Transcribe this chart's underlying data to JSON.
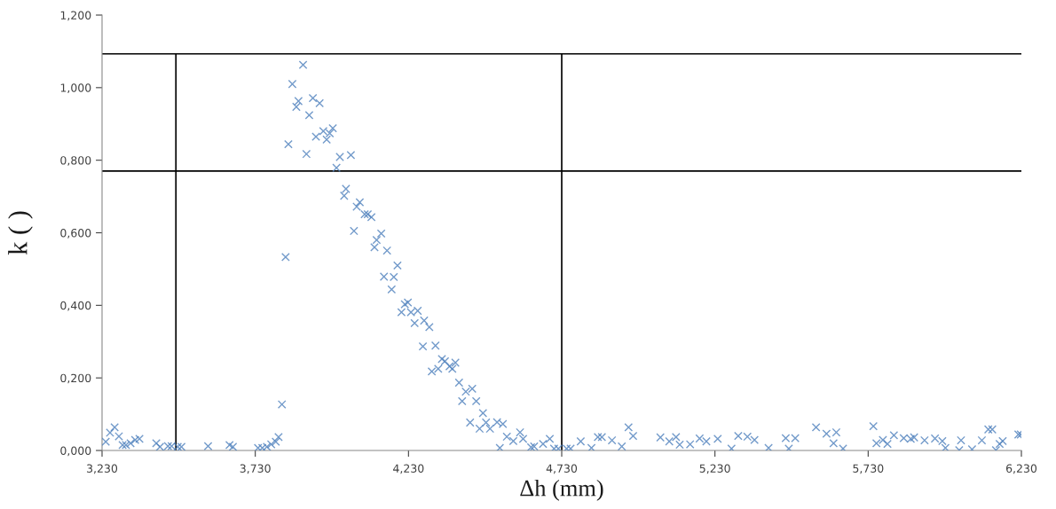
{
  "chart_data": {
    "type": "scatter",
    "xlabel": "Δh (mm)",
    "ylabel": "k ( )",
    "marker": "cross",
    "grid": false,
    "legend": false,
    "series": [
      {
        "color": "#4f81bd",
        "x": [
          3.242,
          3.256,
          3.271,
          3.285,
          3.297,
          3.308,
          3.323,
          3.338,
          3.352,
          3.407,
          3.419,
          3.445,
          3.457,
          3.477,
          3.489,
          3.576,
          3.646,
          3.657,
          3.739,
          3.753,
          3.768,
          3.782,
          3.797,
          3.806,
          3.817,
          3.829,
          3.886,
          3.851,
          3.871,
          3.864,
          3.918,
          3.94,
          3.906,
          3.952,
          3.983,
          3.973,
          3.928,
          3.963,
          3.838,
          3.897,
          4.006,
          4.042,
          3.995,
          4.026,
          4.02,
          4.071,
          4.061,
          4.087,
          4.097,
          4.109,
          4.052,
          4.141,
          4.126,
          4.119,
          4.16,
          4.194,
          4.15,
          4.182,
          4.175,
          4.228,
          4.218,
          4.207,
          4.238,
          4.26,
          4.25,
          4.281,
          4.298,
          4.277,
          4.318,
          4.339,
          4.349,
          4.383,
          4.306,
          4.327,
          4.364,
          4.373,
          4.395,
          4.417,
          4.438,
          4.405,
          4.451,
          4.473,
          4.431,
          4.462,
          4.483,
          4.496,
          4.519,
          4.538,
          4.528,
          4.551,
          4.572,
          4.594,
          4.604,
          4.63,
          4.64,
          4.669,
          4.691,
          4.705,
          4.719,
          4.746,
          4.759,
          4.792,
          4.827,
          4.848,
          4.861,
          4.894,
          4.926,
          4.948,
          4.963,
          5.052,
          5.081,
          5.103,
          5.115,
          5.149,
          5.18,
          5.202,
          5.239,
          5.284,
          5.306,
          5.336,
          5.359,
          5.405,
          5.461,
          5.471,
          5.492,
          5.56,
          5.594,
          5.626,
          5.617,
          5.648,
          5.747,
          5.757,
          5.778,
          5.793,
          5.814,
          5.846,
          5.869,
          5.88,
          5.914,
          5.948,
          5.972,
          5.982,
          6.027,
          6.033,
          6.069,
          6.101,
          6.122,
          6.135,
          6.147,
          6.159,
          6.169,
          6.22,
          6.228
        ],
        "values": [
          0.024,
          0.049,
          0.064,
          0.039,
          0.015,
          0.015,
          0.02,
          0.029,
          0.032,
          0.02,
          0.01,
          0.012,
          0.012,
          0.01,
          0.01,
          0.012,
          0.015,
          0.01,
          0.007,
          0.007,
          0.01,
          0.017,
          0.024,
          0.037,
          0.127,
          0.533,
          1.063,
          1.01,
          0.963,
          0.947,
          0.971,
          0.957,
          0.924,
          0.88,
          0.888,
          0.874,
          0.865,
          0.857,
          0.844,
          0.817,
          0.809,
          0.814,
          0.779,
          0.721,
          0.702,
          0.684,
          0.672,
          0.651,
          0.651,
          0.643,
          0.605,
          0.598,
          0.58,
          0.56,
          0.551,
          0.51,
          0.479,
          0.478,
          0.444,
          0.408,
          0.403,
          0.381,
          0.381,
          0.385,
          0.351,
          0.358,
          0.34,
          0.287,
          0.289,
          0.252,
          0.246,
          0.242,
          0.218,
          0.225,
          0.232,
          0.225,
          0.187,
          0.162,
          0.17,
          0.136,
          0.136,
          0.103,
          0.077,
          0.06,
          0.077,
          0.06,
          0.078,
          0.073,
          0.007,
          0.038,
          0.026,
          0.05,
          0.032,
          0.009,
          0.011,
          0.018,
          0.032,
          0.005,
          0.005,
          0.005,
          0.005,
          0.025,
          0.007,
          0.037,
          0.037,
          0.028,
          0.011,
          0.064,
          0.04,
          0.036,
          0.025,
          0.037,
          0.016,
          0.017,
          0.033,
          0.025,
          0.032,
          0.005,
          0.04,
          0.038,
          0.029,
          0.007,
          0.034,
          0.005,
          0.034,
          0.064,
          0.046,
          0.05,
          0.02,
          0.005,
          0.067,
          0.02,
          0.029,
          0.018,
          0.042,
          0.034,
          0.032,
          0.036,
          0.028,
          0.033,
          0.026,
          0.007,
          0.001,
          0.028,
          0.003,
          0.028,
          0.058,
          0.058,
          0.001,
          0.018,
          0.026,
          0.044,
          0.044
        ]
      }
    ],
    "xlim": [
      3.23,
      6.23
    ],
    "xticks": [
      {
        "value": 3.23,
        "label": "3,230"
      },
      {
        "value": 3.73,
        "label": "3,730"
      },
      {
        "value": 4.23,
        "label": "4,230"
      },
      {
        "value": 4.73,
        "label": "4,730"
      },
      {
        "value": 5.23,
        "label": "5,230"
      },
      {
        "value": 5.73,
        "label": "5,730"
      },
      {
        "value": 6.23,
        "label": "6,230"
      }
    ],
    "ylim": [
      0,
      1.2
    ],
    "yticks": [
      {
        "value": 0,
        "label": "0,000"
      },
      {
        "value": 0.2,
        "label": "0,200"
      },
      {
        "value": 0.4,
        "label": "0,400"
      },
      {
        "value": 0.6,
        "label": "0,600"
      },
      {
        "value": 0.8,
        "label": "0,800"
      },
      {
        "value": 1.0,
        "label": "1,000"
      },
      {
        "value": 1.2,
        "label": "1,200"
      }
    ],
    "ref_lines": [
      {
        "axis": "y",
        "value": 1.093,
        "color": "#000000"
      },
      {
        "axis": "y",
        "value": 0.77,
        "color": "#000000"
      },
      {
        "axis": "x",
        "value": 3.471,
        "color": "#000000"
      },
      {
        "axis": "x",
        "value": 4.73,
        "color": "#000000"
      }
    ]
  }
}
